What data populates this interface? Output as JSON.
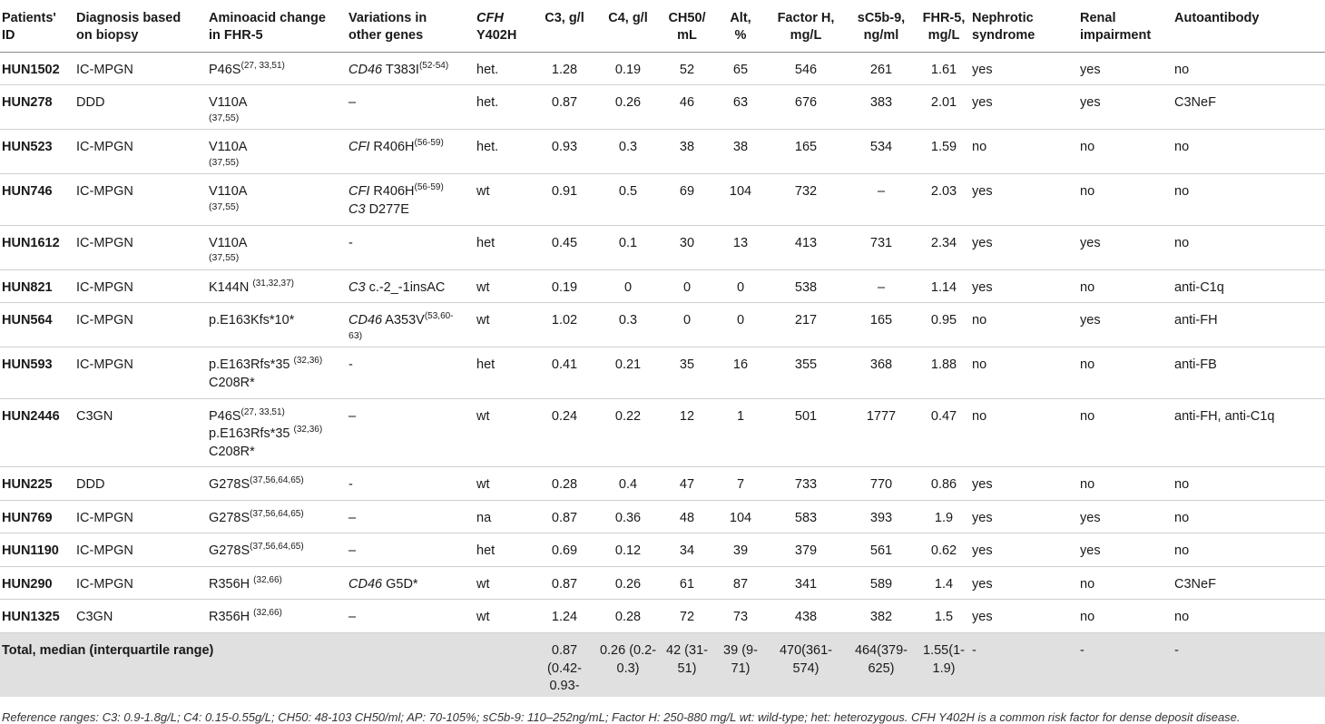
{
  "headers": [
    {
      "line1": "Patients'",
      "line2": "ID"
    },
    {
      "line1": "Diagnosis based",
      "line2": "on biopsy"
    },
    {
      "line1": "Aminoacid change",
      "line2": "in FHR-5"
    },
    {
      "line1": "Variations in",
      "line2": "other genes"
    },
    {
      "line1": "CFH",
      "line2": "Y402H"
    },
    {
      "line1": "C3, g/l",
      "line2": ""
    },
    {
      "line1": "C4, g/l",
      "line2": ""
    },
    {
      "line1": "CH50/",
      "line2": "mL"
    },
    {
      "line1": "Alt,",
      "line2": "%"
    },
    {
      "line1": "Factor H,",
      "line2": "mg/L"
    },
    {
      "line1": "sC5b-9,",
      "line2": "ng/ml"
    },
    {
      "line1": "FHR-5,",
      "line2": "mg/L"
    },
    {
      "line1": "Nephrotic",
      "line2": "syndrome"
    },
    {
      "line1": "Renal",
      "line2": "impairment"
    },
    {
      "line1": "Autoantibody",
      "line2": ""
    }
  ],
  "rows": [
    {
      "id": "HUN1502",
      "diag": "IC-MPGN",
      "aa": [
        {
          "t": "P46S",
          "sup": "(27, 33,51)"
        }
      ],
      "var": [
        {
          "gene": "CD46",
          "t": " T383I",
          "sup": "(52-54)"
        }
      ],
      "cfh": "het.",
      "c3": "1.28",
      "c4": "0.19",
      "ch50": "52",
      "alt": "65",
      "fh": "546",
      "sc5b9": "261",
      "fhr5": "1.61",
      "neph": "yes",
      "renal": "yes",
      "auto": "no"
    },
    {
      "id": "HUN278",
      "diag": "DDD",
      "aa": [
        {
          "t": "V110A",
          "ref": "(37,55)"
        }
      ],
      "var": [
        {
          "gene": "",
          "t": "–"
        }
      ],
      "cfh": "het.",
      "c3": "0.87",
      "c4": "0.26",
      "ch50": "46",
      "alt": "63",
      "fh": "676",
      "sc5b9": "383",
      "fhr5": "2.01",
      "neph": "yes",
      "renal": "yes",
      "auto": "C3NeF"
    },
    {
      "id": "HUN523",
      "diag": "IC-MPGN",
      "aa": [
        {
          "t": "V110A",
          "ref": "(37,55)"
        }
      ],
      "var": [
        {
          "gene": "CFI",
          "t": " R406H",
          "sup": "(56-59)"
        }
      ],
      "cfh": "het.",
      "c3": "0.93",
      "c4": "0.3",
      "ch50": "38",
      "alt": "38",
      "fh": "165",
      "sc5b9": "534",
      "fhr5": "1.59",
      "neph": "no",
      "renal": "no",
      "auto": "no"
    },
    {
      "id": "HUN746",
      "diag": "IC-MPGN",
      "aa": [
        {
          "t": "V110A",
          "ref": "(37,55)"
        }
      ],
      "var": [
        {
          "gene": "CFI",
          "t": " R406H",
          "sup": "(56-59)"
        },
        {
          "gene": "C3",
          "t": " D277E"
        }
      ],
      "cfh": "wt",
      "c3": "0.91",
      "c4": "0.5",
      "ch50": "69",
      "alt": "104",
      "fh": "732",
      "sc5b9": "–",
      "fhr5": "2.03",
      "neph": "yes",
      "renal": "no",
      "auto": "no"
    },
    {
      "id": "HUN1612",
      "diag": "IC-MPGN",
      "aa": [
        {
          "t": "V110A",
          "ref": "(37,55)"
        }
      ],
      "var": [
        {
          "gene": "",
          "t": "-"
        }
      ],
      "cfh": "het",
      "c3": "0.45",
      "c4": "0.1",
      "ch50": "30",
      "alt": "13",
      "fh": "413",
      "sc5b9": "731",
      "fhr5": "2.34",
      "neph": "yes",
      "renal": "yes",
      "auto": "no"
    },
    {
      "id": "HUN821",
      "diag": "IC-MPGN",
      "aa": [
        {
          "t": "K144N ",
          "sup": "(31,32,37)"
        }
      ],
      "var": [
        {
          "gene": "C3",
          "t": " c.-2_-1insAC"
        }
      ],
      "cfh": "wt",
      "c3": "0.19",
      "c4": "0",
      "ch50": "0",
      "alt": "0",
      "fh": "538",
      "sc5b9": "–",
      "fhr5": "1.14",
      "neph": "yes",
      "renal": "no",
      "auto": "anti-C1q"
    },
    {
      "id": "HUN564",
      "diag": "IC-MPGN",
      "aa": [
        {
          "t": "p.E163Kfs*10*"
        }
      ],
      "var": [
        {
          "gene": "CD46",
          "t": " A353V",
          "sup": "(53,60-",
          "ref": "63)"
        }
      ],
      "cfh": "wt",
      "c3": "1.02",
      "c4": "0.3",
      "ch50": "0",
      "alt": "0",
      "fh": "217",
      "sc5b9": "165",
      "fhr5": "0.95",
      "neph": "no",
      "renal": "yes",
      "auto": "anti-FH"
    },
    {
      "id": "HUN593",
      "diag": "IC-MPGN",
      "aa": [
        {
          "t": "p.E163Rfs*35 ",
          "sup": "(32,36)"
        },
        {
          "t": "C208R*"
        }
      ],
      "var": [
        {
          "gene": "",
          "t": "-"
        }
      ],
      "cfh": "het",
      "c3": "0.41",
      "c4": "0.21",
      "ch50": "35",
      "alt": "16",
      "fh": "355",
      "sc5b9": "368",
      "fhr5": "1.88",
      "neph": "no",
      "renal": "no",
      "auto": "anti-FB"
    },
    {
      "id": "HUN2446",
      "diag": "C3GN",
      "aa": [
        {
          "t": "P46S",
          "sup": "(27, 33,51)"
        },
        {
          "t": "p.E163Rfs*35 ",
          "sup": "(32,36)"
        },
        {
          "t": "C208R*"
        }
      ],
      "var": [
        {
          "gene": "",
          "t": "–"
        }
      ],
      "cfh": "wt",
      "c3": "0.24",
      "c4": "0.22",
      "ch50": "12",
      "alt": "1",
      "fh": "501",
      "sc5b9": "1777",
      "fhr5": "0.47",
      "neph": "no",
      "renal": "no",
      "auto": "anti-FH, anti-C1q"
    },
    {
      "id": "HUN225",
      "diag": "DDD",
      "aa": [
        {
          "t": "G278S",
          "sup": "(37,56,64,65)"
        }
      ],
      "var": [
        {
          "gene": "",
          "t": "-"
        }
      ],
      "cfh": "wt",
      "c3": "0.28",
      "c4": "0.4",
      "ch50": "47",
      "alt": "7",
      "fh": "733",
      "sc5b9": "770",
      "fhr5": "0.86",
      "neph": "yes",
      "renal": "no",
      "auto": "no"
    },
    {
      "id": "HUN769",
      "diag": "IC-MPGN",
      "aa": [
        {
          "t": "G278S",
          "sup": "(37,56,64,65)"
        }
      ],
      "var": [
        {
          "gene": "",
          "t": "–"
        }
      ],
      "cfh": "na",
      "c3": "0.87",
      "c4": "0.36",
      "ch50": "48",
      "alt": "104",
      "fh": "583",
      "sc5b9": "393",
      "fhr5": "1.9",
      "neph": "yes",
      "renal": "yes",
      "auto": "no"
    },
    {
      "id": "HUN1190",
      "diag": "IC-MPGN",
      "aa": [
        {
          "t": "G278S",
          "sup": "(37,56,64,65)"
        }
      ],
      "var": [
        {
          "gene": "",
          "t": "–"
        }
      ],
      "cfh": "het",
      "c3": "0.69",
      "c4": "0.12",
      "ch50": "34",
      "alt": "39",
      "fh": "379",
      "sc5b9": "561",
      "fhr5": "0.62",
      "neph": "yes",
      "renal": "yes",
      "auto": "no"
    },
    {
      "id": "HUN290",
      "diag": "IC-MPGN",
      "aa": [
        {
          "t": "R356H ",
          "sup": "(32,66)"
        }
      ],
      "var": [
        {
          "gene": "CD46",
          "t": " G5D*"
        }
      ],
      "cfh": "wt",
      "c3": "0.87",
      "c4": "0.26",
      "ch50": "61",
      "alt": "87",
      "fh": "341",
      "sc5b9": "589",
      "fhr5": "1.4",
      "neph": "yes",
      "renal": "no",
      "auto": "C3NeF"
    },
    {
      "id": "HUN1325",
      "diag": "C3GN",
      "aa": [
        {
          "t": "R356H ",
          "sup": "(32,66)"
        }
      ],
      "var": [
        {
          "gene": "",
          "t": "–"
        }
      ],
      "cfh": "wt",
      "c3": "1.24",
      "c4": "0.28",
      "ch50": "72",
      "alt": "73",
      "fh": "438",
      "sc5b9": "382",
      "fhr5": "1.5",
      "neph": "yes",
      "renal": "no",
      "auto": "no"
    }
  ],
  "total": {
    "label": "Total, median (interquartile range)",
    "c3": "0.87 (0.42-0.93-",
    "c4": "0.26 (0.2-0.3)",
    "ch50": "42 (31-51)",
    "alt": "39 (9-71)",
    "fh": "470(361-574)",
    "sc5b9": "464(379-625)",
    "fhr5": "1.55(1-1.9)",
    "neph": "-",
    "renal": "-",
    "auto": "-"
  },
  "footnote": "Reference ranges: C3: 0.9-1.8g/L; C4: 0.15-0.55g/L; CH50: 48-103 CH50/ml; AP: 70-105%; sC5b-9: 110–252ng/mL; Factor H: 250-880 mg/L wt: wild-type; het: heterozygous. CFH Y402H is a common risk factor for dense deposit disease."
}
